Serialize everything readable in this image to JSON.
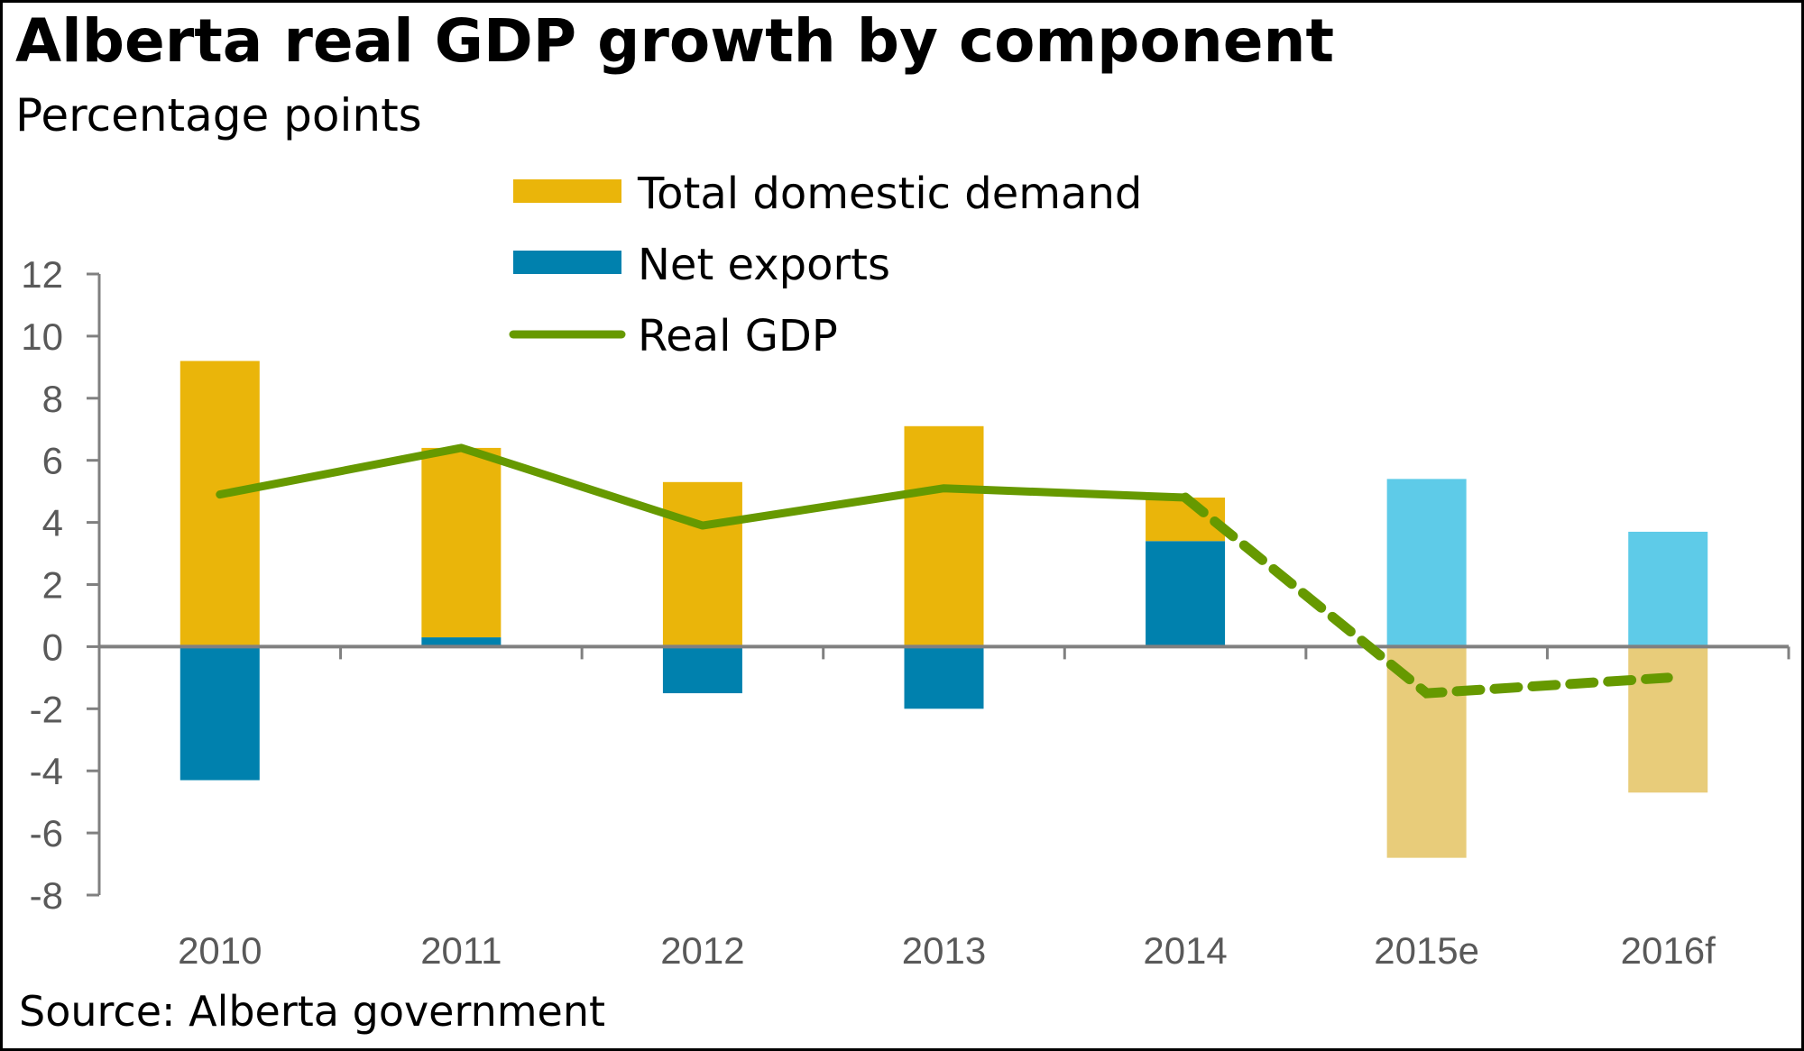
{
  "header": {
    "title": "Alberta real GDP growth by component",
    "subtitle": "Percentage points"
  },
  "footer": {
    "source": "Source: Alberta government"
  },
  "colors": {
    "total_domestic_demand": "#EAB50A",
    "total_domestic_demand_forecast": "#E8CC7A",
    "net_exports": "#0081AE",
    "net_exports_forecast": "#5ECBE8",
    "real_gdp": "#669900",
    "axis": "#808080"
  },
  "chart_data": {
    "type": "bar",
    "title": "Alberta real GDP growth by component",
    "subtitle": "Percentage points",
    "xlabel": "",
    "ylabel": "Percentage points",
    "categories": [
      "2010",
      "2011",
      "2012",
      "2013",
      "2014",
      "2015e",
      "2016f"
    ],
    "forecast_categories": [
      "2015e",
      "2016f"
    ],
    "ylim": [
      -8,
      12
    ],
    "yticks": [
      12,
      10,
      8,
      6,
      4,
      2,
      0,
      -2,
      -4,
      -6,
      -8
    ],
    "ytick_labels": [
      "12",
      "10",
      "8",
      "6",
      "4",
      "2",
      "0",
      "-2",
      "-4",
      "-6",
      "-8"
    ],
    "grid": false,
    "legend_position": "top-center",
    "series": [
      {
        "name": "Total domestic demand",
        "kind": "stacked-bar",
        "values": [
          9.2,
          6.1,
          5.3,
          7.1,
          1.4,
          -6.8,
          -4.7
        ]
      },
      {
        "name": "Net exports",
        "kind": "stacked-bar",
        "values": [
          -4.3,
          0.3,
          -1.5,
          -2.0,
          3.4,
          5.4,
          3.7
        ]
      },
      {
        "name": "Real GDP",
        "kind": "line",
        "values": [
          4.9,
          6.4,
          3.9,
          5.1,
          4.8,
          -1.5,
          -1.0
        ],
        "dashed_from": "2014"
      }
    ],
    "legend": [
      {
        "label": "Total domestic demand",
        "swatch": "bar"
      },
      {
        "label": "Net exports",
        "swatch": "bar"
      },
      {
        "label": "Real GDP",
        "swatch": "line"
      }
    ]
  }
}
